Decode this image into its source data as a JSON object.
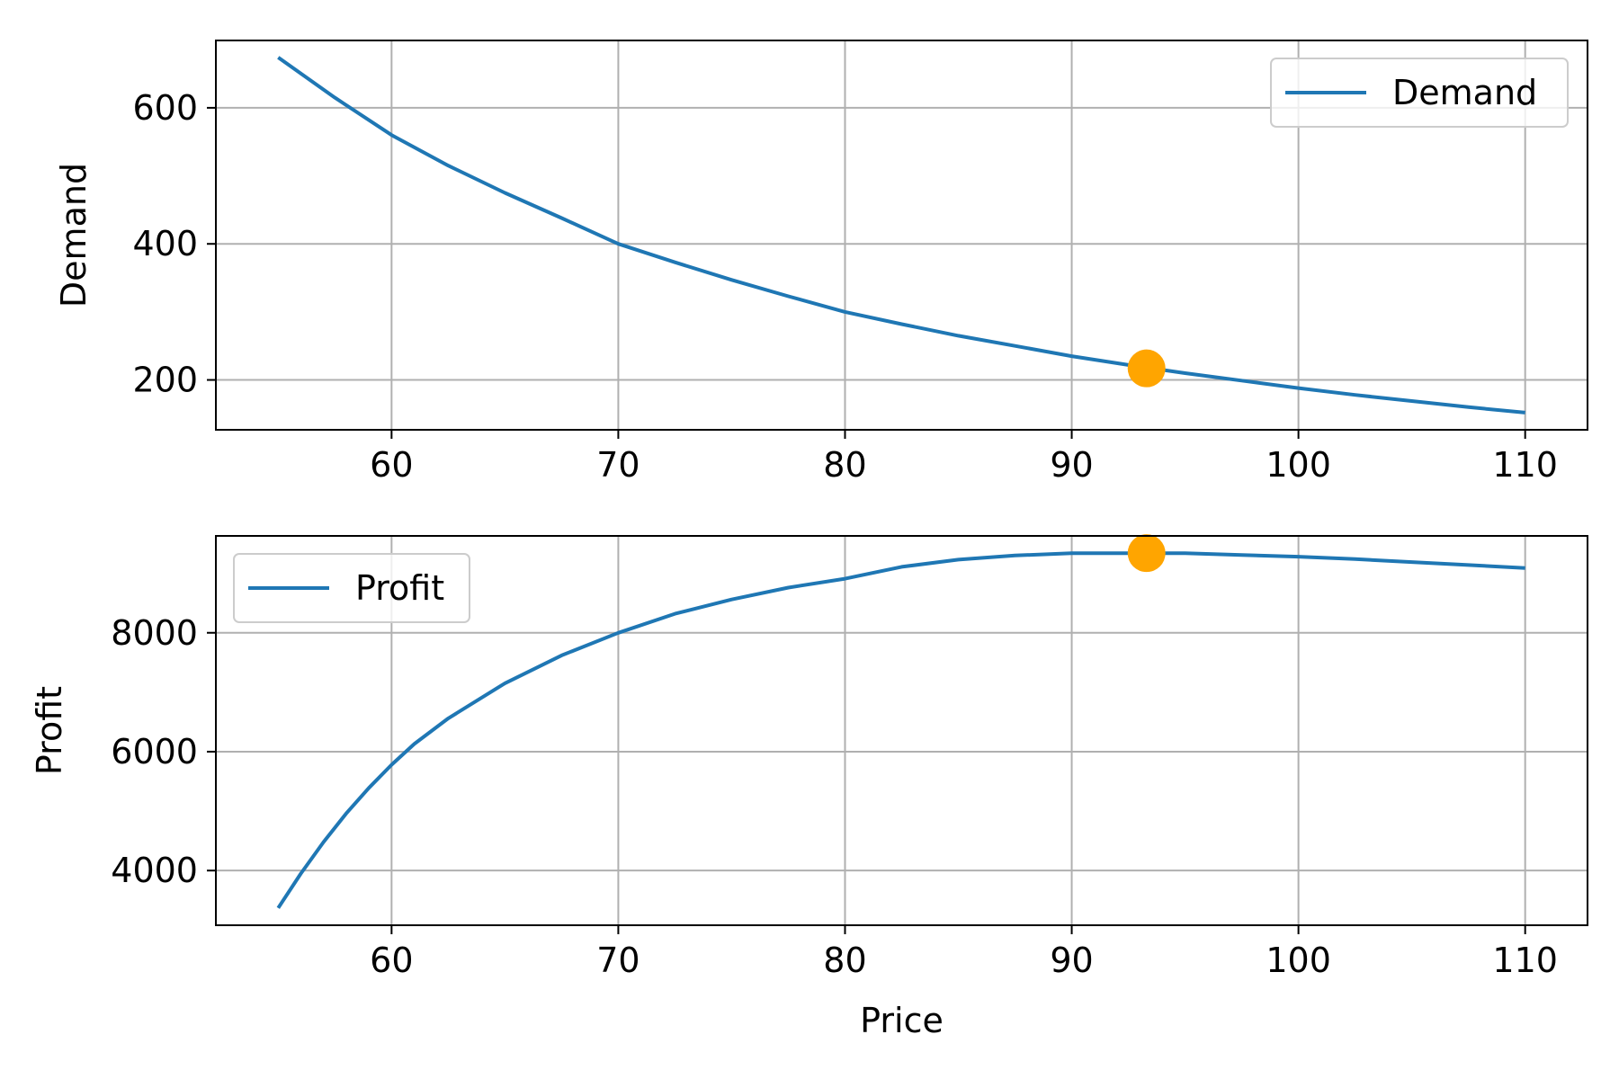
{
  "chart_data": [
    {
      "type": "line",
      "title": "",
      "xlabel": "",
      "ylabel": "Demand",
      "xlim": [
        52.25,
        112.75
      ],
      "ylim": [
        126.7,
        699.0
      ],
      "xticks": [
        60,
        70,
        80,
        90,
        100,
        110
      ],
      "yticks": [
        200,
        400,
        600
      ],
      "grid": true,
      "legend_position": "upper right",
      "series": [
        {
          "name": "Demand",
          "color": "#1f77b4",
          "x": [
            55,
            57.5,
            60,
            62.5,
            65,
            67.5,
            70,
            72.5,
            75,
            77.5,
            80,
            82.5,
            85,
            87.5,
            90,
            92.5,
            95,
            97.5,
            100,
            102.5,
            105,
            107.5,
            110
          ],
          "y": [
            674,
            615,
            560,
            515,
            475,
            438,
            400,
            373,
            347,
            323,
            300,
            282,
            265,
            250,
            235,
            222,
            210,
            199,
            188,
            178,
            169,
            160,
            152
          ]
        }
      ],
      "marker": {
        "x": 93.3,
        "y": 217,
        "color": "#ffa500"
      }
    },
    {
      "type": "line",
      "title": "",
      "xlabel": "Price",
      "ylabel": "Profit",
      "xlim": [
        52.25,
        112.75
      ],
      "ylim": [
        3080,
        9630
      ],
      "xticks": [
        60,
        70,
        80,
        90,
        100,
        110
      ],
      "yticks": [
        4000,
        6000,
        8000
      ],
      "grid": true,
      "legend_position": "upper left",
      "series": [
        {
          "name": "Profit",
          "color": "#1f77b4",
          "x": [
            55,
            56,
            57,
            58,
            59,
            60,
            61,
            62.5,
            65,
            67.5,
            70,
            72.5,
            75,
            77.5,
            80,
            82.5,
            85,
            87.5,
            90,
            92.5,
            95,
            97.5,
            100,
            102.5,
            105,
            107.5,
            110
          ],
          "y": [
            3370,
            3950,
            4480,
            4960,
            5390,
            5780,
            6130,
            6560,
            7150,
            7620,
            8000,
            8320,
            8560,
            8760,
            8910,
            9110,
            9230,
            9300,
            9340,
            9340,
            9340,
            9310,
            9280,
            9240,
            9190,
            9140,
            9090
          ]
        }
      ],
      "marker": {
        "x": 93.3,
        "y": 9340,
        "color": "#ffa500"
      }
    }
  ]
}
